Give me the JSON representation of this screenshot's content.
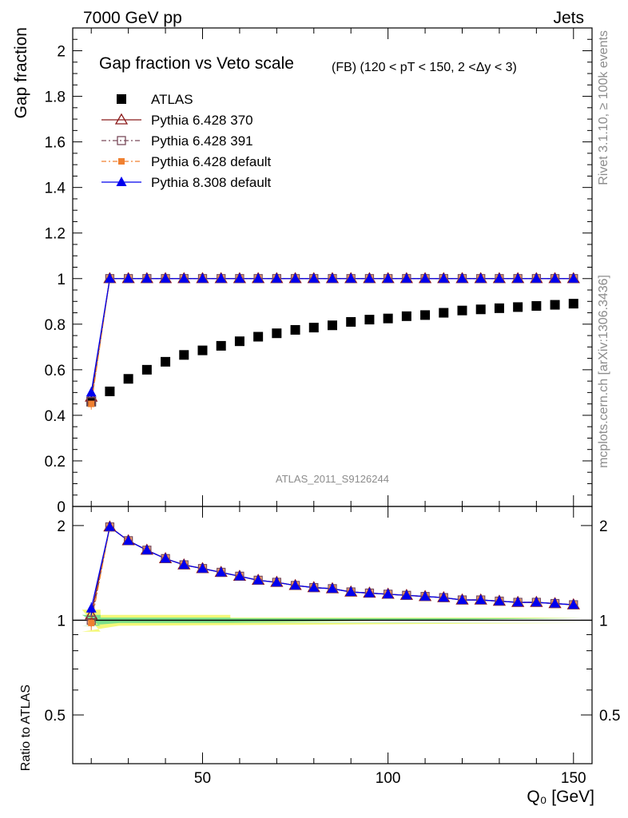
{
  "header": {
    "left_label": "7000 GeV pp",
    "right_label": "Jets"
  },
  "side_text": {
    "rivet": "Rivet 3.1.10, ≥ 100k events",
    "mcplots": "mcplots.cern.ch [arXiv:1306.3436]"
  },
  "watermark": "ATLAS_2011_S9126244",
  "chart_data": [
    {
      "type": "scatter",
      "title": "Gap fraction vs Veto scale",
      "subtitle": "(FB) (120 < pT < 150, 2 <Δy < 3)",
      "ylabel": "Gap fraction",
      "xlabel": "",
      "xlim": [
        15,
        155
      ],
      "ylim": [
        0,
        2.1
      ],
      "yticks": [
        "0",
        "0.2",
        "0.4",
        "0.6",
        "0.8",
        "1",
        "1.2",
        "1.4",
        "1.6",
        "1.8",
        "2"
      ],
      "legend_position": "top-left",
      "x": [
        20,
        25,
        30,
        35,
        40,
        45,
        50,
        55,
        60,
        65,
        70,
        75,
        80,
        85,
        90,
        95,
        100,
        105,
        110,
        115,
        120,
        125,
        130,
        135,
        140,
        145,
        150
      ],
      "series": [
        {
          "name": "ATLAS",
          "marker": "filled-square",
          "color": "#000000",
          "values": [
            0.46,
            0.505,
            0.56,
            0.6,
            0.635,
            0.665,
            0.685,
            0.705,
            0.725,
            0.745,
            0.76,
            0.775,
            0.785,
            0.795,
            0.81,
            0.82,
            0.825,
            0.835,
            0.84,
            0.85,
            0.86,
            0.865,
            0.87,
            0.875,
            0.88,
            0.885,
            0.89
          ]
        },
        {
          "name": "Pythia 6.428 370",
          "marker": "open-triangle",
          "color": "#8b1a1a",
          "line": "solid",
          "values": [
            0.48,
            1,
            1,
            1,
            1,
            1,
            1,
            1,
            1,
            1,
            1,
            1,
            1,
            1,
            1,
            1,
            1,
            1,
            1,
            1,
            1,
            1,
            1,
            1,
            1,
            1,
            1
          ]
        },
        {
          "name": "Pythia 6.428 391",
          "marker": "open-square",
          "color": "#7a4a5a",
          "line": "dash-dot",
          "values": [
            0.46,
            1,
            1,
            1,
            1,
            1,
            1,
            1,
            1,
            1,
            1,
            1,
            1,
            1,
            1,
            1,
            1,
            1,
            1,
            1,
            1,
            1,
            1,
            1,
            1,
            1,
            1
          ]
        },
        {
          "name": "Pythia 6.428 default",
          "marker": "filled-square-small",
          "color": "#f08030",
          "line": "dash-dot",
          "values": [
            0.45,
            1,
            1,
            1,
            1,
            1,
            1,
            1,
            1,
            1,
            1,
            1,
            1,
            1,
            1,
            1,
            1,
            1,
            1,
            1,
            1,
            1,
            1,
            1,
            1,
            1,
            1
          ]
        },
        {
          "name": "Pythia 8.308 default",
          "marker": "filled-triangle",
          "color": "#0000ee",
          "line": "solid",
          "values": [
            0.5,
            1,
            1,
            1,
            1,
            1,
            1,
            1,
            1,
            1,
            1,
            1,
            1,
            1,
            1,
            1,
            1,
            1,
            1,
            1,
            1,
            1,
            1,
            1,
            1,
            1,
            1
          ]
        }
      ]
    },
    {
      "type": "line",
      "ylabel": "Ratio to ATLAS",
      "xlabel": "Q₀ [GeV]",
      "xlim": [
        15,
        155
      ],
      "ylim": [
        0.35,
        2.3
      ],
      "yticks": [
        "0.5",
        "1",
        "2"
      ],
      "xticks": [
        "50",
        "100",
        "150"
      ],
      "x": [
        20,
        25,
        30,
        35,
        40,
        45,
        50,
        55,
        60,
        65,
        70,
        75,
        80,
        85,
        90,
        95,
        100,
        105,
        110,
        115,
        120,
        125,
        130,
        135,
        140,
        145,
        150
      ],
      "reference_band": {
        "inner_color": "#7ce08c",
        "outer_color": "#f4f878",
        "inner_half_width": [
          0.04,
          0.02,
          0.015
        ],
        "outer_half_width": [
          0.08,
          0.04,
          0.02
        ]
      },
      "series": [
        {
          "name": "Pythia 6.428 370",
          "color": "#8b1a1a",
          "values": [
            1.04,
            1.98,
            1.79,
            1.67,
            1.57,
            1.5,
            1.46,
            1.42,
            1.38,
            1.34,
            1.32,
            1.29,
            1.27,
            1.26,
            1.23,
            1.22,
            1.21,
            1.2,
            1.19,
            1.18,
            1.16,
            1.16,
            1.15,
            1.14,
            1.14,
            1.13,
            1.12
          ]
        },
        {
          "name": "Pythia 6.428 391",
          "color": "#7a4a5a",
          "values": [
            1.0,
            1.98,
            1.79,
            1.67,
            1.57,
            1.5,
            1.46,
            1.42,
            1.38,
            1.34,
            1.32,
            1.29,
            1.27,
            1.26,
            1.23,
            1.22,
            1.21,
            1.2,
            1.19,
            1.18,
            1.16,
            1.16,
            1.15,
            1.14,
            1.14,
            1.13,
            1.12
          ]
        },
        {
          "name": "Pythia 6.428 default",
          "color": "#f08030",
          "values": [
            0.98,
            1.98,
            1.79,
            1.67,
            1.57,
            1.5,
            1.46,
            1.42,
            1.38,
            1.34,
            1.32,
            1.29,
            1.27,
            1.26,
            1.23,
            1.22,
            1.21,
            1.2,
            1.19,
            1.18,
            1.16,
            1.16,
            1.15,
            1.14,
            1.14,
            1.13,
            1.12
          ]
        },
        {
          "name": "Pythia 8.308 default",
          "color": "#0000ee",
          "values": [
            1.09,
            1.98,
            1.79,
            1.67,
            1.57,
            1.5,
            1.46,
            1.42,
            1.38,
            1.34,
            1.32,
            1.29,
            1.27,
            1.26,
            1.23,
            1.22,
            1.21,
            1.2,
            1.19,
            1.18,
            1.16,
            1.16,
            1.15,
            1.14,
            1.14,
            1.13,
            1.12
          ]
        }
      ]
    }
  ]
}
